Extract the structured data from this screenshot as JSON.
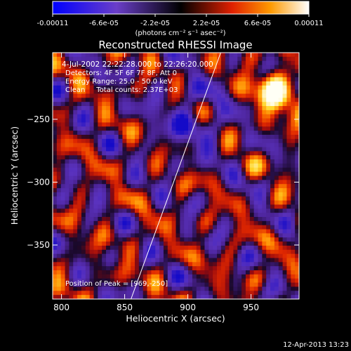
{
  "chart_data": {
    "type": "heatmap",
    "title": "Reconstructed RHESSI Image",
    "xlabel": "Heliocentric X (arcsec)",
    "ylabel": "Heliocentric Y (arcsec)",
    "xlim": [
      793,
      988
    ],
    "ylim": [
      -393,
      -197
    ],
    "x_ticks": [
      800,
      850,
      900,
      950
    ],
    "y_ticks": [
      -250,
      -300,
      -350
    ],
    "colorbar": {
      "range": [
        -0.00011,
        0.00011
      ],
      "tick_values": [
        -0.00011,
        -6.6e-05,
        -2.2e-05,
        2.2e-05,
        6.6e-05,
        0.00011
      ],
      "tick_labels": [
        "-0.00011",
        "-6.6e-05",
        "-2.2e-05",
        "2.2e-05",
        "6.6e-05",
        "0.00011"
      ],
      "units_label": "(photons cm⁻² s⁻¹ asec⁻²)"
    },
    "annotations": [
      "4-Jul-2002 22:22:28.000 to 22:26:20.000",
      "Detectors: 4F 5F 6F 7F 8F, Att 0",
      "Energy Range: 25.0 - 50.0 keV",
      "Clean     Total counts: 2.37E+03"
    ],
    "peak_label": "Position of Peak = [969,-250]",
    "peak_position": [
      969,
      -250
    ],
    "limb_line": [
      [
        855,
        -393
      ],
      [
        926,
        -197
      ]
    ],
    "grid": false,
    "footer_date": "12-Apr-2013 13:23"
  }
}
